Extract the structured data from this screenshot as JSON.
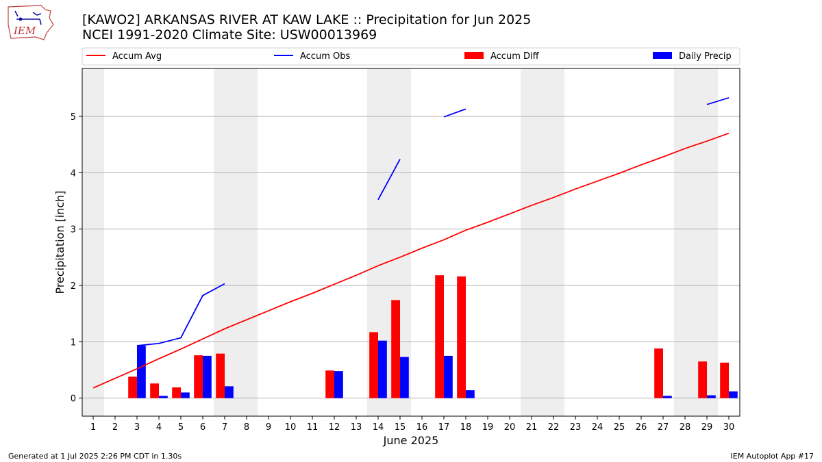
{
  "header": {
    "title_line1": "[KAWO2] ARKANSAS RIVER  AT KAW LAKE :: Precipitation for Jun 2025",
    "title_line2": "NCEI 1991-2020 Climate Site: USW00013969"
  },
  "logo": {
    "text": "IEM",
    "icon": "iem-state-logo"
  },
  "footer": {
    "generated": "Generated at 1 Jul 2025 2:26 PM CDT in 1.30s",
    "app": "IEM Autoplot App #17"
  },
  "colors": {
    "accum_avg": "#ff0000",
    "accum_obs": "#0000ff",
    "accum_diff": "#ff0000",
    "daily_precip": "#0000ff",
    "weekend_shade": "#eeeeee",
    "grid": "#b0b0b0"
  },
  "chart_data": {
    "type": "bar",
    "title": "[KAWO2] ARKANSAS RIVER  AT KAW LAKE :: Precipitation for Jun 2025",
    "xlabel": "June 2025",
    "ylabel": "Precipitation [inch]",
    "x": [
      1,
      2,
      3,
      4,
      5,
      6,
      7,
      8,
      9,
      10,
      11,
      12,
      13,
      14,
      15,
      16,
      17,
      18,
      19,
      20,
      21,
      22,
      23,
      24,
      25,
      26,
      27,
      28,
      29,
      30
    ],
    "xlim": [
      0.5,
      30.5
    ],
    "ylim": [
      -0.32,
      5.85
    ],
    "yticks": [
      0,
      1,
      2,
      3,
      4,
      5
    ],
    "grid": "horizontal",
    "legend_placement": "top, above plot",
    "legend": [
      "Accum Avg",
      "Accum Obs",
      "Accum Diff",
      "Daily Precip"
    ],
    "weekend_days": [
      1,
      7,
      8,
      14,
      15,
      21,
      22,
      28,
      29
    ],
    "series": [
      {
        "name": "Accum Avg",
        "kind": "line",
        "values": [
          0.18,
          0.35,
          0.52,
          0.7,
          0.87,
          1.05,
          1.23,
          1.39,
          1.55,
          1.71,
          1.86,
          2.02,
          2.18,
          2.35,
          2.5,
          2.66,
          2.81,
          2.98,
          3.12,
          3.27,
          3.42,
          3.56,
          3.71,
          3.85,
          3.99,
          4.14,
          4.28,
          4.43,
          4.56,
          4.7
        ]
      },
      {
        "name": "Accum Obs",
        "kind": "line",
        "values": [
          null,
          null,
          0.93,
          0.97,
          1.07,
          1.82,
          2.03,
          null,
          null,
          null,
          null,
          null,
          null,
          3.52,
          4.24,
          null,
          4.99,
          5.13,
          null,
          null,
          null,
          null,
          null,
          null,
          null,
          null,
          null,
          null,
          5.21,
          5.33
        ]
      },
      {
        "name": "Accum Diff",
        "kind": "bar",
        "values": [
          0,
          0,
          0.38,
          0.26,
          0.19,
          0.76,
          0.79,
          0,
          0,
          0,
          0,
          0.49,
          0,
          1.17,
          1.74,
          0,
          2.18,
          2.16,
          0,
          0,
          0,
          0,
          0,
          0,
          0,
          0,
          0.88,
          0,
          0.65,
          0.63
        ]
      },
      {
        "name": "Daily Precip",
        "kind": "bar",
        "values": [
          0,
          0,
          0.93,
          0.04,
          0.1,
          0.75,
          0.21,
          0,
          0,
          0,
          0,
          0.48,
          0,
          1.02,
          0.73,
          0,
          0.75,
          0.14,
          0,
          0,
          0,
          0,
          0,
          0,
          0,
          0,
          0.04,
          0,
          0.05,
          0.12
        ]
      }
    ]
  }
}
